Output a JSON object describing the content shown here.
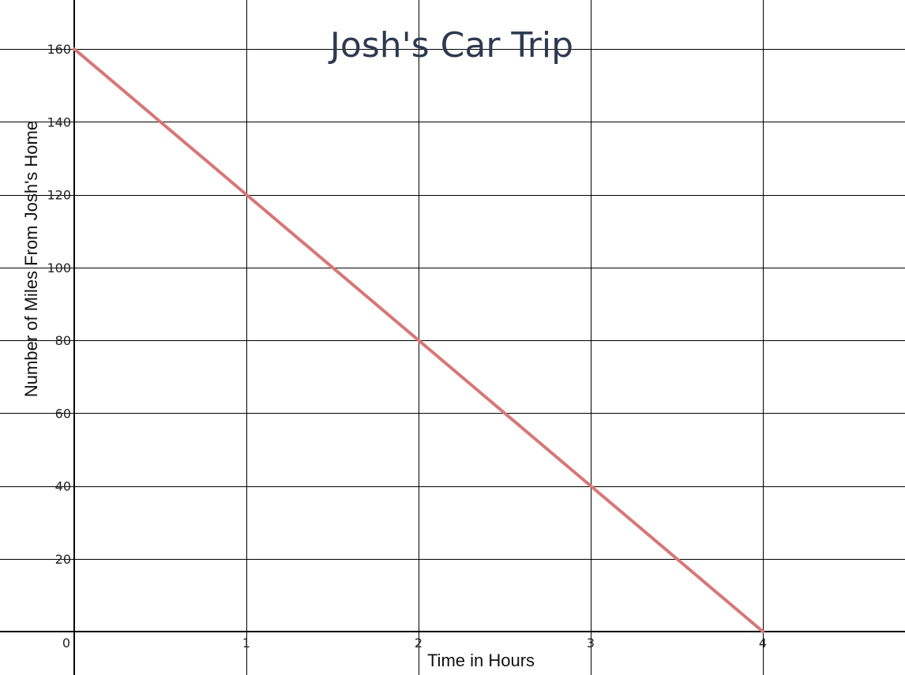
{
  "chart_data": {
    "type": "line",
    "title": "Josh's Car Trip",
    "xlabel": "Time in Hours",
    "ylabel": "Number of Miles From Josh's Home",
    "xlim": [
      0,
      4.8
    ],
    "ylim": [
      -12,
      174
    ],
    "x_ticks": [
      "0",
      "1",
      "2",
      "3",
      "4"
    ],
    "y_ticks": [
      "20",
      "40",
      "60",
      "80",
      "100",
      "120",
      "140",
      "160"
    ],
    "grid": true,
    "series": [
      {
        "x": [
          0,
          1,
          2,
          3,
          4
        ],
        "y": [
          160,
          120,
          80,
          40,
          0
        ],
        "color": "#d67876"
      }
    ]
  }
}
